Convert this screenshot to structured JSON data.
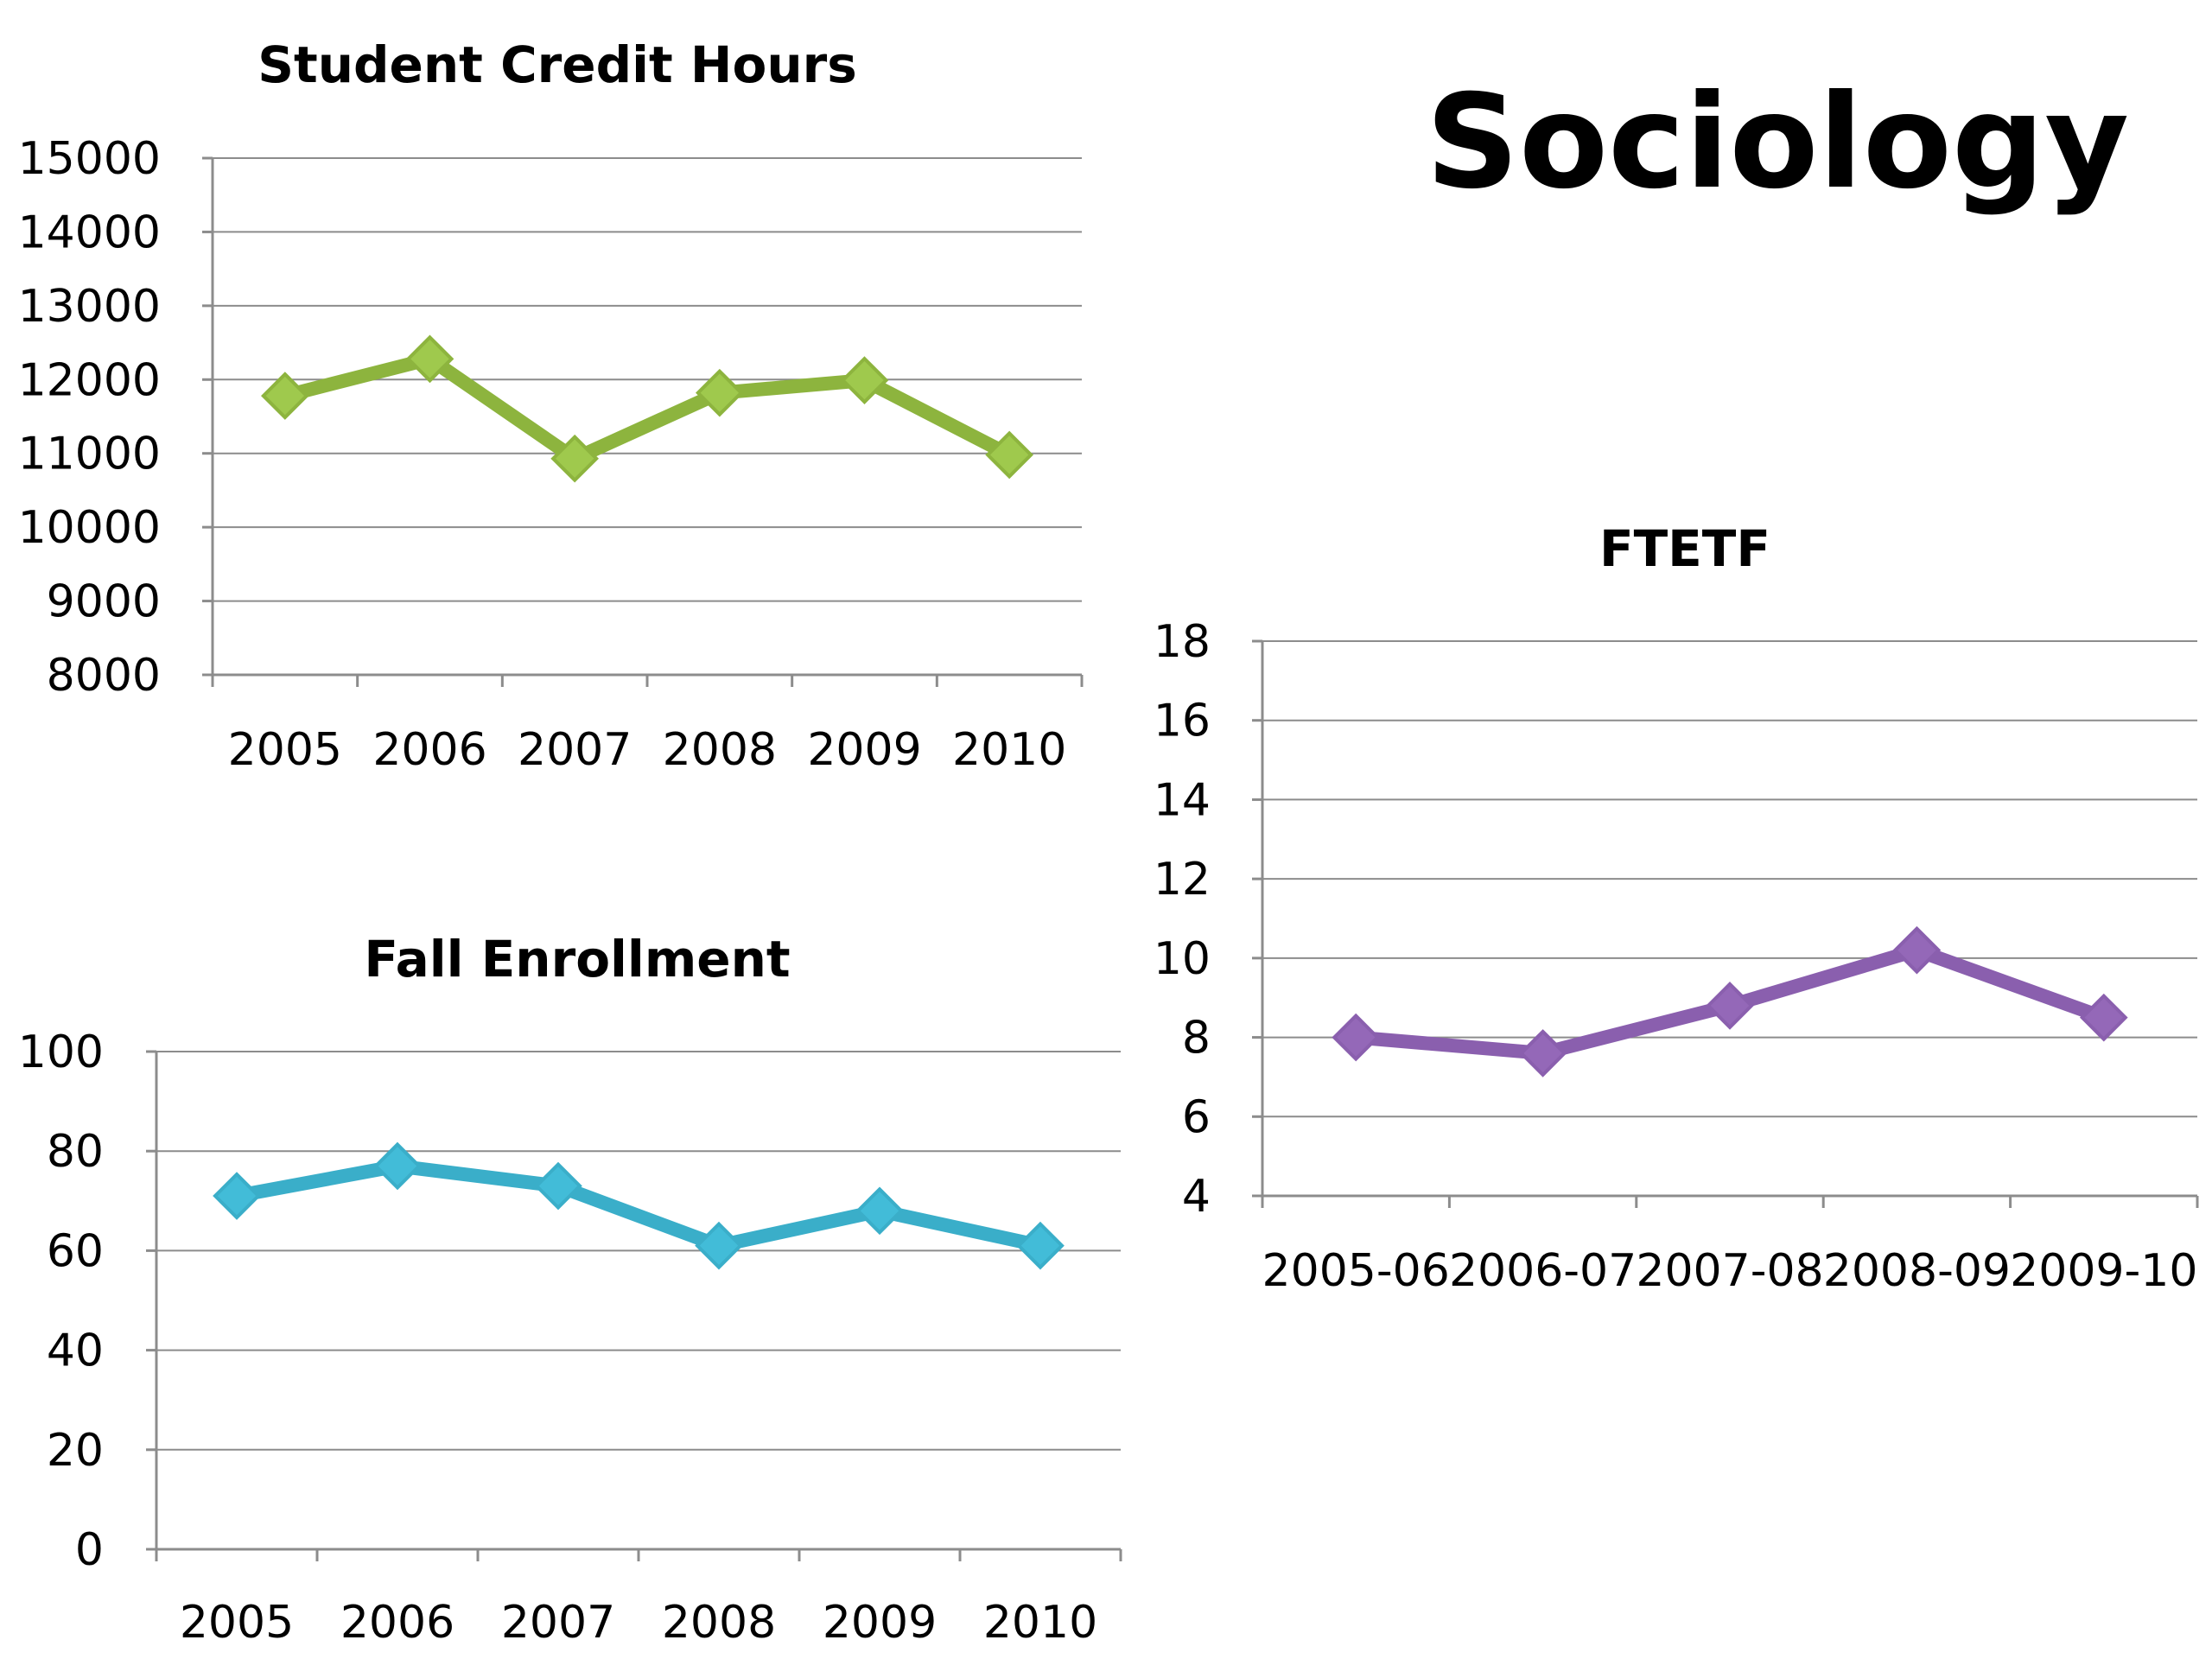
{
  "page": {
    "title": "Sociology"
  },
  "colors": {
    "credit_hours_line": "#8db43e",
    "credit_hours_marker": "#9fc94d",
    "enrollment_line": "#3aaec9",
    "enrollment_marker": "#42bcd8",
    "ftetf_line": "#8a5fae",
    "ftetf_marker": "#9468b8"
  },
  "chart_data": [
    {
      "id": "credit-hours",
      "type": "line",
      "title": "Student Credit Hours",
      "categories": [
        "2005",
        "2006",
        "2007",
        "2008",
        "2009",
        "2010"
      ],
      "values": [
        11780,
        12280,
        10930,
        11820,
        11990,
        10980
      ],
      "ylim": [
        8000,
        15000
      ],
      "yticks": [
        8000,
        9000,
        10000,
        11000,
        12000,
        13000,
        14000,
        15000
      ],
      "grid": true,
      "marker": "diamond"
    },
    {
      "id": "fall-enrollment",
      "type": "line",
      "title": "Fall Enrollment",
      "categories": [
        "2005",
        "2006",
        "2007",
        "2008",
        "2009",
        "2010"
      ],
      "values": [
        71,
        77,
        73,
        61,
        68,
        61
      ],
      "ylim": [
        0,
        100
      ],
      "yticks": [
        0,
        20,
        40,
        60,
        80,
        100
      ],
      "grid": true,
      "marker": "diamond"
    },
    {
      "id": "ftetf",
      "type": "line",
      "title": "FTETF",
      "categories": [
        "2005-06",
        "2006-07",
        "2007-08",
        "2008-09",
        "2009-10"
      ],
      "values": [
        8.0,
        7.6,
        8.8,
        10.2,
        8.5
      ],
      "ylim": [
        4,
        18
      ],
      "yticks": [
        4,
        6,
        8,
        10,
        12,
        14,
        16,
        18
      ],
      "grid": true,
      "marker": "diamond"
    }
  ]
}
